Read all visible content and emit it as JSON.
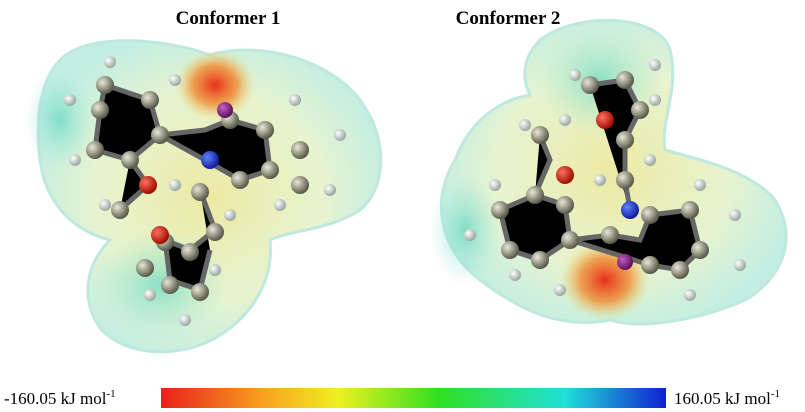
{
  "panels": [
    {
      "title": "Conformer 1"
    },
    {
      "title": "Conformer 2"
    }
  ],
  "scale": {
    "min": {
      "label": "-160.05 kJ mol",
      "exponent": "-1"
    },
    "max": {
      "label": "160.05 kJ mol",
      "exponent": "-1"
    }
  }
}
